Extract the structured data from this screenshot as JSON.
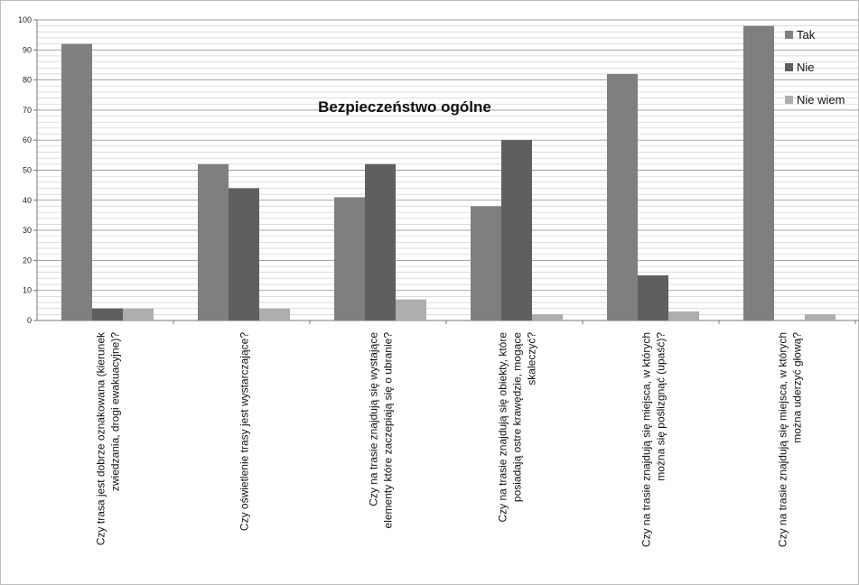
{
  "chart_data": {
    "type": "bar",
    "title": "Bezpieczeństwo ogólne",
    "xlabel": "",
    "ylabel": "",
    "ylim": [
      0,
      100
    ],
    "yticks": [
      0,
      10,
      20,
      30,
      40,
      50,
      60,
      70,
      80,
      90,
      100
    ],
    "grid": true,
    "legend_position": "top-right",
    "categories": [
      [
        "Czy trasa jest dobrze oznakowana (kierunek",
        "zwiedzania, drogi ewakuacyjne)?"
      ],
      [
        "Czy oświetlenie trasy jest wystarczające?"
      ],
      [
        "Czy na trasie znajdują się wystające",
        "elementy które zaczepiają się o ubranie?"
      ],
      [
        "Czy na trasie znajdują się obiekty, które",
        "posiadają ostre krawędzie, mogące",
        "skaleczyć?"
      ],
      [
        "Czy na trasie znajdują się miejsca, w których",
        "można się poślizgnąć (upaść)?"
      ],
      [
        "Czy na trasie znajdują się miejsca, w których",
        "można uderzyć głową?"
      ]
    ],
    "series": [
      {
        "name": "Tak",
        "color": "#7f7f7f",
        "values": [
          92,
          52,
          41,
          38,
          82,
          98
        ]
      },
      {
        "name": "Nie",
        "color": "#5f5f5f",
        "values": [
          4,
          44,
          52,
          60,
          15,
          0
        ]
      },
      {
        "name": "Nie wiem",
        "color": "#aeaeae",
        "values": [
          4,
          4,
          7,
          2,
          3,
          2
        ]
      }
    ]
  }
}
